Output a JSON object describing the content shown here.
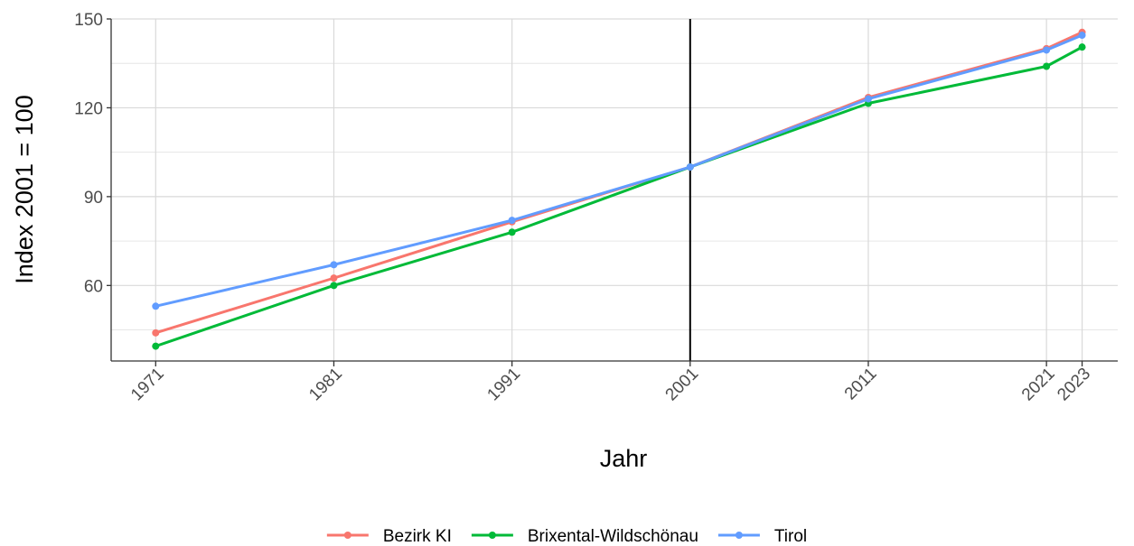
{
  "chart_data": {
    "type": "line",
    "xlabel": "Jahr",
    "ylabel": "Index 2001 = 100",
    "x": [
      1971,
      1981,
      1991,
      2001,
      2011,
      2021,
      2023
    ],
    "x_tick_labels": [
      "1971",
      "1981",
      "1991",
      "2001",
      "2011",
      "2021",
      "2023"
    ],
    "y_ticks": [
      60,
      90,
      120,
      150
    ],
    "y_tick_labels": [
      "60",
      "90",
      "120",
      "150"
    ],
    "xlim": [
      1968.5,
      2025
    ],
    "ylim": [
      34.5,
      150
    ],
    "reference_line_x": 2001,
    "grid": true,
    "legend_position": "bottom",
    "series": [
      {
        "name": "Bezirk KI",
        "color": "#F8766D",
        "values": [
          44,
          62.5,
          81.5,
          100,
          123.5,
          140,
          145.5
        ]
      },
      {
        "name": "Brixental-Wildschönau",
        "color": "#00BA38",
        "values": [
          39.5,
          60,
          78,
          100,
          121.5,
          134,
          140.5
        ]
      },
      {
        "name": "Tirol",
        "color": "#619CFF",
        "values": [
          53,
          67,
          82,
          100,
          123,
          139.5,
          144.5
        ]
      }
    ]
  }
}
